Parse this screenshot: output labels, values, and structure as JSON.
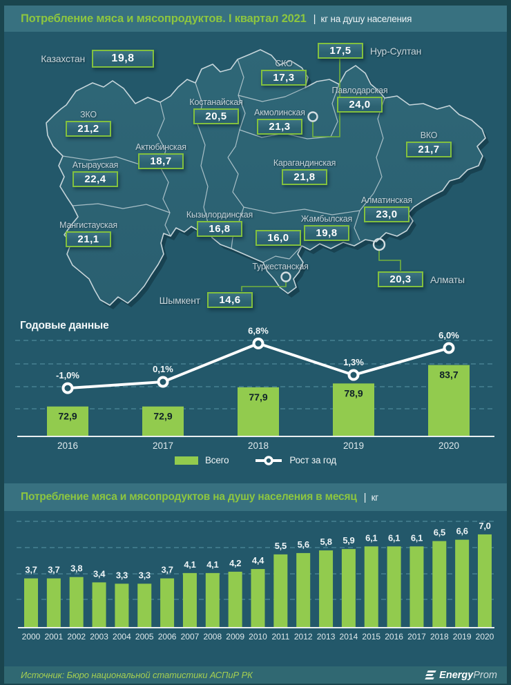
{
  "accent_green": "#8dc63f",
  "background_teal": "#23586a",
  "header1": {
    "title": "Потребление мяса и мясопродуктов. I квартал 2021",
    "separator": "|",
    "unit": "кг на душу населения"
  },
  "map": {
    "country": {
      "name": "Казахстан",
      "value": "19,8"
    },
    "regions": [
      {
        "name": "ЗКО",
        "value": "21,2"
      },
      {
        "name": "Атырауская",
        "value": "22,4"
      },
      {
        "name": "Мангистауская",
        "value": "21,1"
      },
      {
        "name": "Актюбинская",
        "value": "18,7"
      },
      {
        "name": "Костанайская",
        "value": "20,5"
      },
      {
        "name": "СКО",
        "value": "17,3"
      },
      {
        "name": "Акмолинская",
        "value": "21,3"
      },
      {
        "name": "Павлодарская",
        "value": "24,0"
      },
      {
        "name": "ВКО",
        "value": "21,7"
      },
      {
        "name": "Карагандинская",
        "value": "21,8"
      },
      {
        "name": "Кызылординская",
        "value": "16,8"
      },
      {
        "name": "Туркестанская",
        "value": "16,0"
      },
      {
        "name": "Жамбылская",
        "value": "19,8"
      },
      {
        "name": "Алматинская",
        "value": "23,0"
      }
    ],
    "cities": [
      {
        "name": "Нур-Султан",
        "value": "17,5"
      },
      {
        "name": "Алматы",
        "value": "20,3"
      },
      {
        "name": "Шымкент",
        "value": "14,6"
      }
    ]
  },
  "chart_data": [
    {
      "type": "bar+line",
      "title": "Годовые данные",
      "categories": [
        "2016",
        "2017",
        "2018",
        "2019",
        "2020"
      ],
      "series": [
        {
          "name": "Всего",
          "type": "bar",
          "values": [
            72.9,
            72.9,
            77.9,
            78.9,
            83.7
          ],
          "labels": [
            "72,9",
            "72,9",
            "77,9",
            "78,9",
            "83,7"
          ]
        },
        {
          "name": "Рост за год",
          "type": "line",
          "values": [
            -1.0,
            0.1,
            6.8,
            1.3,
            6.0
          ],
          "labels": [
            "-1,0%",
            "0,1%",
            "6,8%",
            "1,3%",
            "6,0%"
          ]
        }
      ],
      "legend_position": "bottom",
      "grid": "dashed-horizontal"
    },
    {
      "type": "bar",
      "title": "Потребление мяса и мясопродуктов на душу населения в месяц",
      "separator": "|",
      "unit": "кг",
      "categories": [
        "2000",
        "2001",
        "2002",
        "2003",
        "2004",
        "2005",
        "2006",
        "2007",
        "2008",
        "2009",
        "2010",
        "2011",
        "2012",
        "2013",
        "2014",
        "2015",
        "2016",
        "2017",
        "2018",
        "2019",
        "2020"
      ],
      "values": [
        3.7,
        3.7,
        3.8,
        3.4,
        3.3,
        3.3,
        3.7,
        4.1,
        4.1,
        4.2,
        4.4,
        5.5,
        5.6,
        5.8,
        5.9,
        6.1,
        6.1,
        6.1,
        6.5,
        6.6,
        7.0
      ],
      "labels": [
        "3,7",
        "3,7",
        "3,8",
        "3,4",
        "3,3",
        "3,3",
        "3,7",
        "4,1",
        "4,1",
        "4,2",
        "4,4",
        "5,5",
        "5,6",
        "5,8",
        "5,9",
        "6,1",
        "6,1",
        "6,1",
        "6,5",
        "6,6",
        "7,0"
      ],
      "ylim": [
        0,
        8
      ],
      "grid": "dashed-horizontal"
    }
  ],
  "footer": {
    "source": "Источник: Бюро национальной  статистики АСПиР РК",
    "logo_bold": "Energy",
    "logo_light": "Prom"
  }
}
